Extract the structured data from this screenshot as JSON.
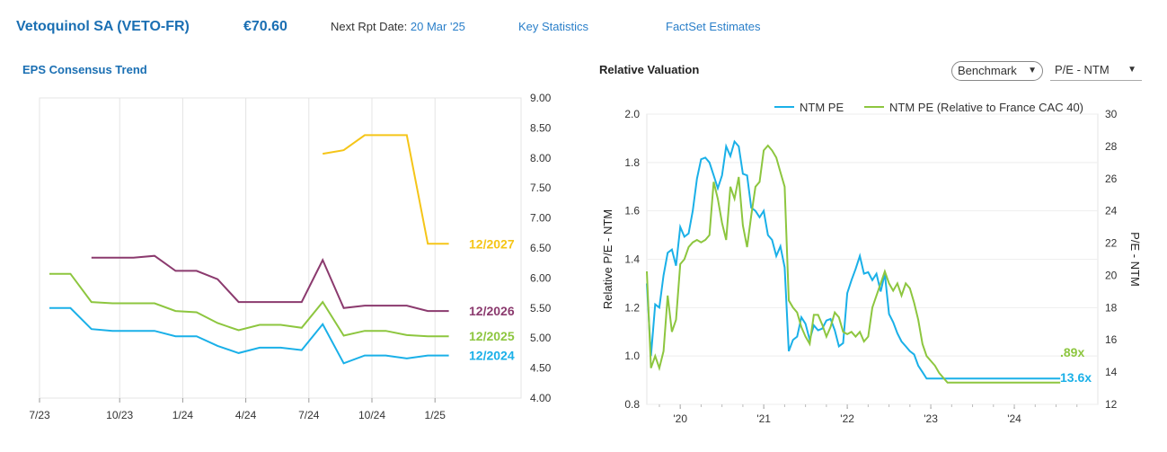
{
  "header": {
    "company": "Vetoquinol SA (VETO-FR)",
    "price": "€70.60",
    "next_rpt_label": "Next Rpt Date:",
    "next_rpt_value": "20 Mar '25",
    "key_stats": "Key Statistics",
    "factset": "FactSet Estimates"
  },
  "left_panel": {
    "title": "EPS Consensus Trend"
  },
  "right_panel": {
    "title": "Relative Valuation",
    "benchmark_label": "Benchmark",
    "metric_select": "P/E - NTM"
  },
  "colors": {
    "fy2024": "#1ab0e8",
    "fy2025": "#8dc63f",
    "fy2026": "#8b3a6e",
    "fy2027": "#f5c518",
    "ntm_pe": "#1ab0e8",
    "rel_pe": "#8dc63f",
    "link": "#2a7fc9",
    "title": "#1a6fb3"
  },
  "chart_data": [
    {
      "type": "line",
      "title": "EPS Consensus Trend",
      "x": [
        "7/23",
        "8/23",
        "9/23",
        "10/23",
        "11/23",
        "12/23",
        "1/24",
        "2/24",
        "3/24",
        "4/24",
        "5/24",
        "6/24",
        "7/24",
        "8/24",
        "9/24",
        "10/24",
        "11/24",
        "12/24",
        "1/25",
        "2/25"
      ],
      "xticks": [
        "7/23",
        "10/23",
        "1/24",
        "4/24",
        "7/24",
        "10/24",
        "1/25"
      ],
      "yticks": [
        "4.00",
        "4.50",
        "5.00",
        "5.50",
        "6.00",
        "6.50",
        "7.00",
        "7.50",
        "8.00",
        "8.50",
        "9.00"
      ],
      "ylim": [
        4.0,
        9.0
      ],
      "y_axis_side": "right",
      "series": [
        {
          "name": "12/2024",
          "color_key": "fy2024",
          "values": [
            5.5,
            5.5,
            5.15,
            5.12,
            5.12,
            5.12,
            5.03,
            5.03,
            4.87,
            4.75,
            4.84,
            4.84,
            4.8,
            5.23,
            4.58,
            4.71,
            4.71,
            4.66,
            4.71,
            4.71
          ]
        },
        {
          "name": "12/2025",
          "color_key": "fy2025",
          "values": [
            6.07,
            6.07,
            5.6,
            5.58,
            5.58,
            5.58,
            5.45,
            5.43,
            5.25,
            5.13,
            5.22,
            5.22,
            5.17,
            5.6,
            5.04,
            5.12,
            5.12,
            5.05,
            5.03,
            5.03
          ]
        },
        {
          "name": "12/2026",
          "color_key": "fy2026",
          "values": [
            null,
            null,
            6.34,
            6.34,
            6.34,
            6.37,
            6.12,
            6.12,
            5.98,
            5.6,
            5.6,
            5.6,
            5.6,
            6.3,
            5.5,
            5.54,
            5.54,
            5.54,
            5.45,
            5.45
          ]
        },
        {
          "name": "12/2027",
          "color_key": "fy2027",
          "values": [
            null,
            null,
            null,
            null,
            null,
            null,
            null,
            null,
            null,
            null,
            null,
            null,
            null,
            8.07,
            8.13,
            8.38,
            8.38,
            8.38,
            6.57,
            6.57
          ]
        }
      ]
    },
    {
      "type": "line",
      "title": "Relative Valuation",
      "xticks": [
        "'20",
        "'21",
        "'22",
        "'23",
        "'24"
      ],
      "x_start": 2019.6,
      "x_end": 2025.0,
      "left_axis": {
        "label": "Relative P/E - NTM",
        "ylim": [
          0.8,
          2.0
        ],
        "ticks": [
          "0.8",
          "1.0",
          "1.2",
          "1.4",
          "1.6",
          "1.8",
          "2.0"
        ]
      },
      "right_axis": {
        "label": "P/E - NTM",
        "ylim": [
          12,
          30
        ],
        "ticks": [
          "12",
          "14",
          "16",
          "18",
          "20",
          "22",
          "24",
          "26",
          "28",
          "30"
        ]
      },
      "series": [
        {
          "name": "NTM PE",
          "axis": "right",
          "color_key": "ntm_pe",
          "end_label": "13.6x",
          "x": [
            2019.6,
            2019.65,
            2019.7,
            2019.75,
            2019.8,
            2019.85,
            2019.9,
            2019.95,
            2020.0,
            2020.05,
            2020.1,
            2020.15,
            2020.2,
            2020.25,
            2020.3,
            2020.35,
            2020.4,
            2020.45,
            2020.5,
            2020.55,
            2020.6,
            2020.65,
            2020.7,
            2020.75,
            2020.8,
            2020.85,
            2020.9,
            2020.95,
            2021.0,
            2021.05,
            2021.1,
            2021.15,
            2021.2,
            2021.25,
            2021.3,
            2021.35,
            2021.4,
            2021.45,
            2021.5,
            2021.55,
            2021.6,
            2021.65,
            2021.7,
            2021.75,
            2021.8,
            2021.85,
            2021.9,
            2021.95,
            2022.0,
            2022.05,
            2022.1,
            2022.15,
            2022.2,
            2022.25,
            2022.3,
            2022.35,
            2022.4,
            2022.45,
            2022.5,
            2022.55,
            2022.6,
            2022.65,
            2022.7,
            2022.75,
            2022.8,
            2022.85,
            2022.9,
            2022.95,
            2023.0,
            2023.05,
            2023.1,
            2023.15,
            2023.2,
            2023.25,
            2023.3,
            2023.35,
            2023.4,
            2023.45,
            2023.5,
            2023.55,
            2023.6,
            2023.65,
            2023.7,
            2023.75,
            2023.8,
            2023.85,
            2023.9,
            2023.95,
            2024.0,
            2024.05,
            2024.1,
            2024.15,
            2024.2,
            2024.25,
            2024.3,
            2024.35,
            2024.4,
            2024.45,
            2024.5,
            2024.55
          ],
          "values": [
            19.5,
            15.0,
            18.2,
            18.0,
            20.0,
            21.4,
            21.6,
            20.6,
            23.0,
            22.4,
            22.6,
            24.0,
            26.0,
            27.2,
            27.3,
            27.0,
            26.2,
            25.4,
            26.2,
            28.0,
            27.4,
            28.3,
            28.0,
            26.3,
            26.2,
            24.2,
            24.0,
            23.6,
            24.0,
            22.5,
            22.2,
            21.2,
            21.8,
            20.5,
            15.3,
            16.0,
            16.2,
            17.4,
            17.0,
            16.0,
            16.9,
            16.6,
            16.7,
            17.2,
            17.3,
            16.6,
            15.6,
            15.8,
            18.9,
            19.7,
            20.4,
            21.2,
            20.1,
            20.2,
            19.7,
            20.1,
            19.0,
            20.1,
            17.6,
            17.1,
            16.4,
            15.9,
            15.6,
            15.3,
            15.1,
            14.4,
            14.0,
            13.6,
            13.6,
            13.6,
            13.6,
            13.6,
            13.6,
            13.6,
            13.6,
            13.6,
            13.6,
            13.6,
            13.6,
            13.6,
            13.6,
            13.6,
            13.6,
            13.6,
            13.6,
            13.6,
            13.6,
            13.6,
            13.6,
            13.6,
            13.6,
            13.6,
            13.6,
            13.6,
            13.6,
            13.6,
            13.6,
            13.6,
            13.6,
            13.6
          ]
        },
        {
          "name": "NTM PE (Relative to France CAC 40)",
          "axis": "left",
          "color_key": "rel_pe",
          "end_label": ".89x",
          "x": [
            2019.6,
            2019.65,
            2019.7,
            2019.75,
            2019.8,
            2019.85,
            2019.9,
            2019.95,
            2020.0,
            2020.05,
            2020.1,
            2020.15,
            2020.2,
            2020.25,
            2020.3,
            2020.35,
            2020.4,
            2020.45,
            2020.5,
            2020.55,
            2020.6,
            2020.65,
            2020.7,
            2020.75,
            2020.8,
            2020.85,
            2020.9,
            2020.95,
            2021.0,
            2021.05,
            2021.1,
            2021.15,
            2021.2,
            2021.25,
            2021.3,
            2021.35,
            2021.4,
            2021.45,
            2021.5,
            2021.55,
            2021.6,
            2021.65,
            2021.7,
            2021.75,
            2021.8,
            2021.85,
            2021.9,
            2021.95,
            2022.0,
            2022.05,
            2022.1,
            2022.15,
            2022.2,
            2022.25,
            2022.3,
            2022.35,
            2022.4,
            2022.45,
            2022.5,
            2022.55,
            2022.6,
            2022.65,
            2022.7,
            2022.75,
            2022.8,
            2022.85,
            2022.9,
            2022.95,
            2023.0,
            2023.05,
            2023.1,
            2023.15,
            2023.2,
            2023.25,
            2023.3,
            2023.35,
            2023.4,
            2023.45,
            2023.5,
            2023.55,
            2023.6,
            2023.65,
            2023.7,
            2023.75,
            2023.8,
            2023.85,
            2023.9,
            2023.95,
            2024.0,
            2024.05,
            2024.1,
            2024.15,
            2024.2,
            2024.25,
            2024.3,
            2024.35,
            2024.4,
            2024.45,
            2024.5,
            2024.55
          ],
          "values": [
            1.35,
            0.95,
            1.0,
            0.95,
            1.02,
            1.25,
            1.1,
            1.15,
            1.38,
            1.4,
            1.45,
            1.47,
            1.48,
            1.47,
            1.48,
            1.5,
            1.72,
            1.65,
            1.55,
            1.48,
            1.7,
            1.65,
            1.74,
            1.54,
            1.45,
            1.58,
            1.7,
            1.72,
            1.85,
            1.87,
            1.85,
            1.82,
            1.76,
            1.7,
            1.23,
            1.2,
            1.18,
            1.12,
            1.08,
            1.05,
            1.17,
            1.17,
            1.13,
            1.08,
            1.12,
            1.18,
            1.16,
            1.1,
            1.09,
            1.1,
            1.08,
            1.1,
            1.06,
            1.08,
            1.2,
            1.25,
            1.3,
            1.35,
            1.3,
            1.27,
            1.3,
            1.25,
            1.3,
            1.28,
            1.22,
            1.15,
            1.05,
            1.0,
            0.98,
            0.96,
            0.93,
            0.91,
            0.89,
            0.89,
            0.89,
            0.89,
            0.89,
            0.89,
            0.89,
            0.89,
            0.89,
            0.89,
            0.89,
            0.89,
            0.89,
            0.89,
            0.89,
            0.89,
            0.89,
            0.89,
            0.89,
            0.89,
            0.89,
            0.89,
            0.89,
            0.89,
            0.89,
            0.89,
            0.89,
            0.89
          ]
        }
      ]
    }
  ]
}
